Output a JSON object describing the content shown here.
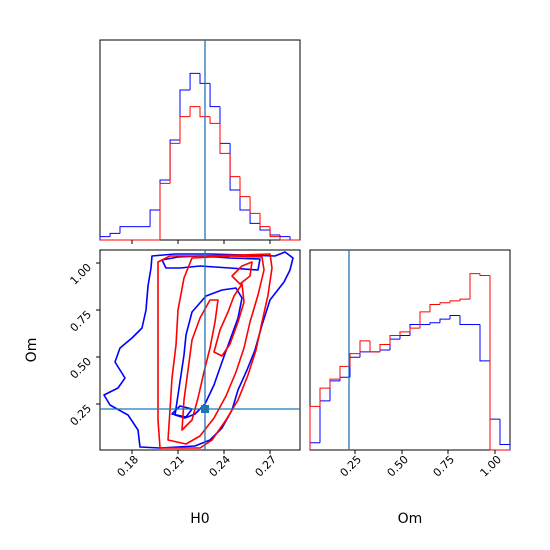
{
  "chart_data": {
    "type": "corner",
    "parameters": [
      "H0",
      "Om"
    ],
    "truth": {
      "H0": 0.227,
      "Om": 0.22
    },
    "colors": {
      "run_blue": "#0000ff",
      "run_red": "#ff0000",
      "truth": "#1f77b4"
    },
    "axes": {
      "H0": {
        "label": "H0",
        "range": [
          0.155,
          0.29
        ],
        "ticks": [
          "0.18",
          "0.21",
          "0.24",
          "0.27"
        ]
      },
      "Om": {
        "label": "Om",
        "range": [
          0.02,
          1.07
        ],
        "ticks": [
          "0.25",
          "0.50",
          "0.75",
          "1.00"
        ]
      }
    },
    "hist_H0": {
      "edges": [
        0.155,
        0.1618,
        0.1685,
        0.1753,
        0.182,
        0.1888,
        0.1955,
        0.2023,
        0.209,
        0.2158,
        0.2225,
        0.2293,
        0.236,
        0.2428,
        0.2495,
        0.2563,
        0.263,
        0.2698,
        0.2765,
        0.2833,
        0.29
      ],
      "series": [
        {
          "color": "blue",
          "values": [
            2,
            4,
            8,
            8,
            8,
            18,
            36,
            60,
            90,
            100,
            94,
            80,
            58,
            30,
            18,
            10,
            6,
            3,
            2,
            0
          ]
        },
        {
          "color": "red",
          "values": [
            0,
            0,
            0,
            0,
            0,
            0,
            34,
            58,
            74,
            80,
            74,
            70,
            52,
            38,
            26,
            16,
            8,
            2,
            0,
            0
          ]
        }
      ]
    },
    "hist_Om": {
      "edges": [
        0.02,
        0.0725,
        0.125,
        0.1775,
        0.23,
        0.2825,
        0.335,
        0.3875,
        0.44,
        0.4925,
        0.545,
        0.5975,
        0.65,
        0.7025,
        0.755,
        0.8075,
        0.86,
        0.9125,
        0.965,
        1.0175,
        1.07
      ],
      "series": [
        {
          "color": "blue",
          "values": [
            4,
            27,
            38,
            40,
            51,
            54,
            54,
            55,
            61,
            63,
            69,
            69,
            70,
            72,
            74,
            69,
            69,
            49,
            17,
            3
          ]
        },
        {
          "color": "red",
          "values": [
            24,
            34,
            39,
            46,
            53,
            60,
            54,
            58,
            63,
            65,
            67,
            76,
            80,
            81,
            82,
            83,
            97,
            96,
            0,
            0
          ]
        }
      ]
    }
  }
}
